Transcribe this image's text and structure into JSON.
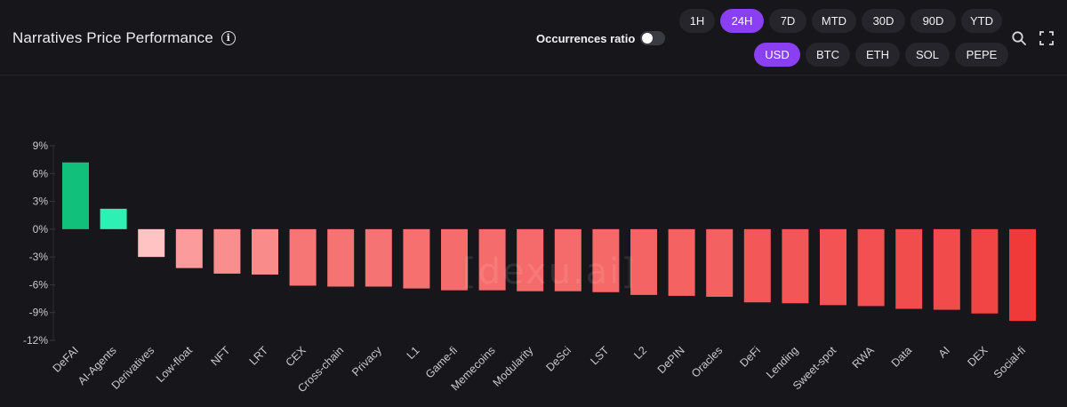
{
  "header": {
    "title": "Narratives Price Performance",
    "info_icon": "info-icon",
    "toggle_label": "Occurrences ratio",
    "toggle_on": false
  },
  "timeframes": [
    "1H",
    "24H",
    "7D",
    "MTD",
    "30D",
    "90D",
    "YTD"
  ],
  "active_timeframe": "24H",
  "currencies": [
    "USD",
    "BTC",
    "ETH",
    "SOL",
    "PEPE"
  ],
  "active_currency": "USD",
  "tools": [
    "search-icon",
    "fullscreen-icon"
  ],
  "watermark": "[dexu.ai]",
  "colors": {
    "accent": "#8a3ff2",
    "positive_strong": "#11c07a",
    "positive_light": "#2ff0b4",
    "negative_light": "#ffc3c3",
    "negative_strong": "#f03a3a",
    "axis_text": "#c9c9cf"
  },
  "chart_data": {
    "type": "bar",
    "title": "Narratives Price Performance",
    "xlabel": "",
    "ylabel": "",
    "ylim": [
      -12,
      9
    ],
    "yticks": [
      9,
      6,
      3,
      0,
      -3,
      -6,
      -9,
      -12
    ],
    "ytick_labels": [
      "9%",
      "6%",
      "3%",
      "0%",
      "-3%",
      "-6%",
      "-9%",
      "-12%"
    ],
    "grid": false,
    "categories": [
      "DeFAI",
      "AI-Agents",
      "Derivatives",
      "Low-float",
      "NFT",
      "LRT",
      "CEX",
      "Cross-chain",
      "Privacy",
      "L1",
      "Game-fi",
      "Memecoins",
      "Modularity",
      "DeSci",
      "LST",
      "L2",
      "DePIN",
      "Oracles",
      "DeFi",
      "Lending",
      "Sweet-spot",
      "RWA",
      "Data",
      "AI",
      "DEX",
      "Social-fi"
    ],
    "values": [
      7.2,
      2.2,
      -3.0,
      -4.2,
      -4.8,
      -4.9,
      -6.1,
      -6.2,
      -6.2,
      -6.4,
      -6.6,
      -6.6,
      -6.7,
      -6.7,
      -6.8,
      -7.1,
      -7.2,
      -7.3,
      -7.9,
      -8.0,
      -8.2,
      -8.3,
      -8.6,
      -8.7,
      -9.1,
      -9.9
    ]
  }
}
